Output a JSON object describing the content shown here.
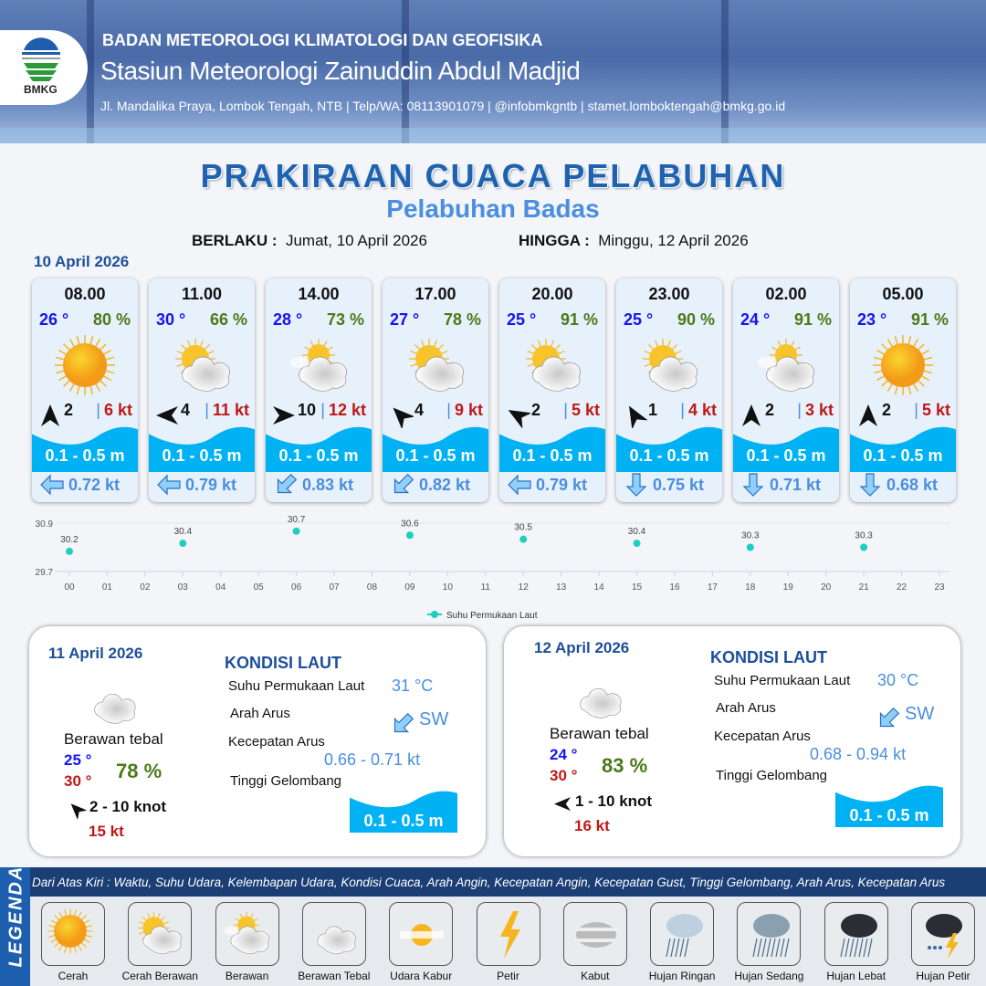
{
  "header": {
    "agency": "BADAN METEOROLOGI KLIMATOLOGI DAN GEOFISIKA",
    "station": "Stasiun Meteorologi Zainuddin Abdul Madjid",
    "contact": "Jl. Mandalika Praya, Lombok Tengah, NTB | Telp/WA: 08113901079 | @infobmkgntb | stamet.lomboktengah@bmkg.go.id",
    "logo_text": "BMKG"
  },
  "title": "PRAKIRAAN CUACA PELABUHAN",
  "subtitle": "Pelabuhan Badas",
  "validity": {
    "from_label": "BERLAKU :",
    "from": "Jumat, 10 April 2026",
    "to_label": "HINGGA :",
    "to": "Minggu, 12 April 2026"
  },
  "day1_date": "10 April 2026",
  "cards": [
    {
      "time": "08.00",
      "temp": "26 °",
      "hum": "80 %",
      "weather": "Cerah",
      "wind_dir_deg": 0,
      "wind": "2",
      "gust": "6 kt",
      "wave": "0.1 - 0.5 m",
      "current_dir_deg": 270,
      "current": "0.72 kt"
    },
    {
      "time": "11.00",
      "temp": "30 °",
      "hum": "66 %",
      "weather": "Cerah Berawan",
      "wind_dir_deg": 270,
      "wind": "4",
      "gust": "11 kt",
      "wave": "0.1 - 0.5 m",
      "current_dir_deg": 270,
      "current": "0.79 kt"
    },
    {
      "time": "14.00",
      "temp": "28 °",
      "hum": "73 %",
      "weather": "Berawan",
      "wind_dir_deg": 90,
      "wind": "10",
      "gust": "12 kt",
      "wave": "0.1 - 0.5 m",
      "current_dir_deg": 225,
      "current": "0.83 kt"
    },
    {
      "time": "17.00",
      "temp": "27 °",
      "hum": "78 %",
      "weather": "Cerah Berawan",
      "wind_dir_deg": 315,
      "wind": "4",
      "gust": "9 kt",
      "wave": "0.1 - 0.5 m",
      "current_dir_deg": 225,
      "current": "0.82 kt"
    },
    {
      "time": "20.00",
      "temp": "25 °",
      "hum": "91 %",
      "weather": "Cerah Berawan",
      "wind_dir_deg": 300,
      "wind": "2",
      "gust": "5 kt",
      "wave": "0.1 - 0.5 m",
      "current_dir_deg": 270,
      "current": "0.79 kt"
    },
    {
      "time": "23.00",
      "temp": "25 °",
      "hum": "90 %",
      "weather": "Cerah Berawan",
      "wind_dir_deg": 330,
      "wind": "1",
      "gust": "4 kt",
      "wave": "0.1 - 0.5 m",
      "current_dir_deg": 180,
      "current": "0.75 kt"
    },
    {
      "time": "02.00",
      "temp": "24 °",
      "hum": "91 %",
      "weather": "Berawan",
      "wind_dir_deg": 0,
      "wind": "2",
      "gust": "3 kt",
      "wave": "0.1 - 0.5 m",
      "current_dir_deg": 180,
      "current": "0.71 kt"
    },
    {
      "time": "05.00",
      "temp": "23 °",
      "hum": "91 %",
      "weather": "Cerah",
      "wind_dir_deg": 0,
      "wind": "2",
      "gust": "5 kt",
      "wave": "0.1 - 0.5 m",
      "current_dir_deg": 180,
      "current": "0.68 kt"
    }
  ],
  "chart_data": {
    "type": "scatter",
    "x_ticks": [
      "00",
      "01",
      "02",
      "03",
      "04",
      "05",
      "06",
      "07",
      "08",
      "09",
      "10",
      "11",
      "12",
      "13",
      "14",
      "15",
      "16",
      "17",
      "18",
      "19",
      "20",
      "21",
      "22",
      "23"
    ],
    "y_ticks": [
      "29.7",
      "30.9"
    ],
    "ylim": [
      29.7,
      30.9
    ],
    "x": [
      0,
      3,
      6,
      9,
      12,
      15,
      18,
      21
    ],
    "labels": [
      "30.2",
      "30.4",
      "30.7",
      "30.6",
      "30.5",
      "30.4",
      "30.3",
      "30.3"
    ],
    "series": [
      {
        "name": "Suhu Permukaan Laut",
        "values": [
          30.2,
          30.4,
          30.7,
          30.6,
          30.5,
          30.4,
          30.3,
          30.3
        ]
      }
    ],
    "color": "#1ccfc0",
    "legend": "bottom",
    "grid": true
  },
  "days": [
    {
      "date": "11 April 2026",
      "weather": "Berawan tebal",
      "tmin": "25 °",
      "tmax": "30 °",
      "hum": "78 %",
      "wind_dir_deg": 315,
      "wind": "2  - 10 knot",
      "gust": "15 kt",
      "sea_title": "KONDISI LAUT",
      "sst_label": "Suhu Permukaan Laut",
      "sst": "31 °C",
      "cur_dir_label": "Arah Arus",
      "cur_dir": "SW",
      "cur_dir_deg": 225,
      "cur_spd_label": "Kecepatan Arus",
      "cur_spd": "0.66 - 0.71 kt",
      "wave_label": "Tinggi Gelombang",
      "wave": "0.1 - 0.5 m"
    },
    {
      "date": "12 April 2026",
      "weather": "Berawan tebal",
      "tmin": "24 °",
      "tmax": "30 °",
      "hum": "83 %",
      "wind_dir_deg": 270,
      "wind": "1  - 10 knot",
      "gust": "16 kt",
      "sea_title": "KONDISI LAUT",
      "sst_label": "Suhu Permukaan Laut",
      "sst": "30 °C",
      "cur_dir_label": "Arah Arus",
      "cur_dir": "SW",
      "cur_dir_deg": 225,
      "cur_spd_label": "Kecepatan Arus",
      "cur_spd": "0.68 - 0.94 kt",
      "wave_label": "Tinggi Gelombang",
      "wave": "0.1 - 0.5 m"
    }
  ],
  "legend": {
    "title": "LEGENDA",
    "description": "Dari Atas Kiri : Waktu, Suhu Udara, Kelembapan Udara, Kondisi Cuaca, Arah Angin, Kecepatan Angin, Kecepatan Gust, Tinggi Gelombang, Arah Arus, Kecepatan Arus",
    "items": [
      {
        "label": "Cerah",
        "icon": "sun"
      },
      {
        "label": "Cerah Berawan",
        "icon": "sun-cloud"
      },
      {
        "label": "Berawan",
        "icon": "cloudy"
      },
      {
        "label": "Berawan Tebal",
        "icon": "overcast"
      },
      {
        "label": "Udara Kabur",
        "icon": "haze"
      },
      {
        "label": "Petir",
        "icon": "lightning"
      },
      {
        "label": "Kabut",
        "icon": "fog"
      },
      {
        "label": "Hujan Ringan",
        "icon": "light-rain"
      },
      {
        "label": "Hujan Sedang",
        "icon": "moderate-rain"
      },
      {
        "label": "Hujan Lebat",
        "icon": "heavy-rain"
      },
      {
        "label": "Hujan Petir",
        "icon": "thunderstorm"
      }
    ]
  }
}
